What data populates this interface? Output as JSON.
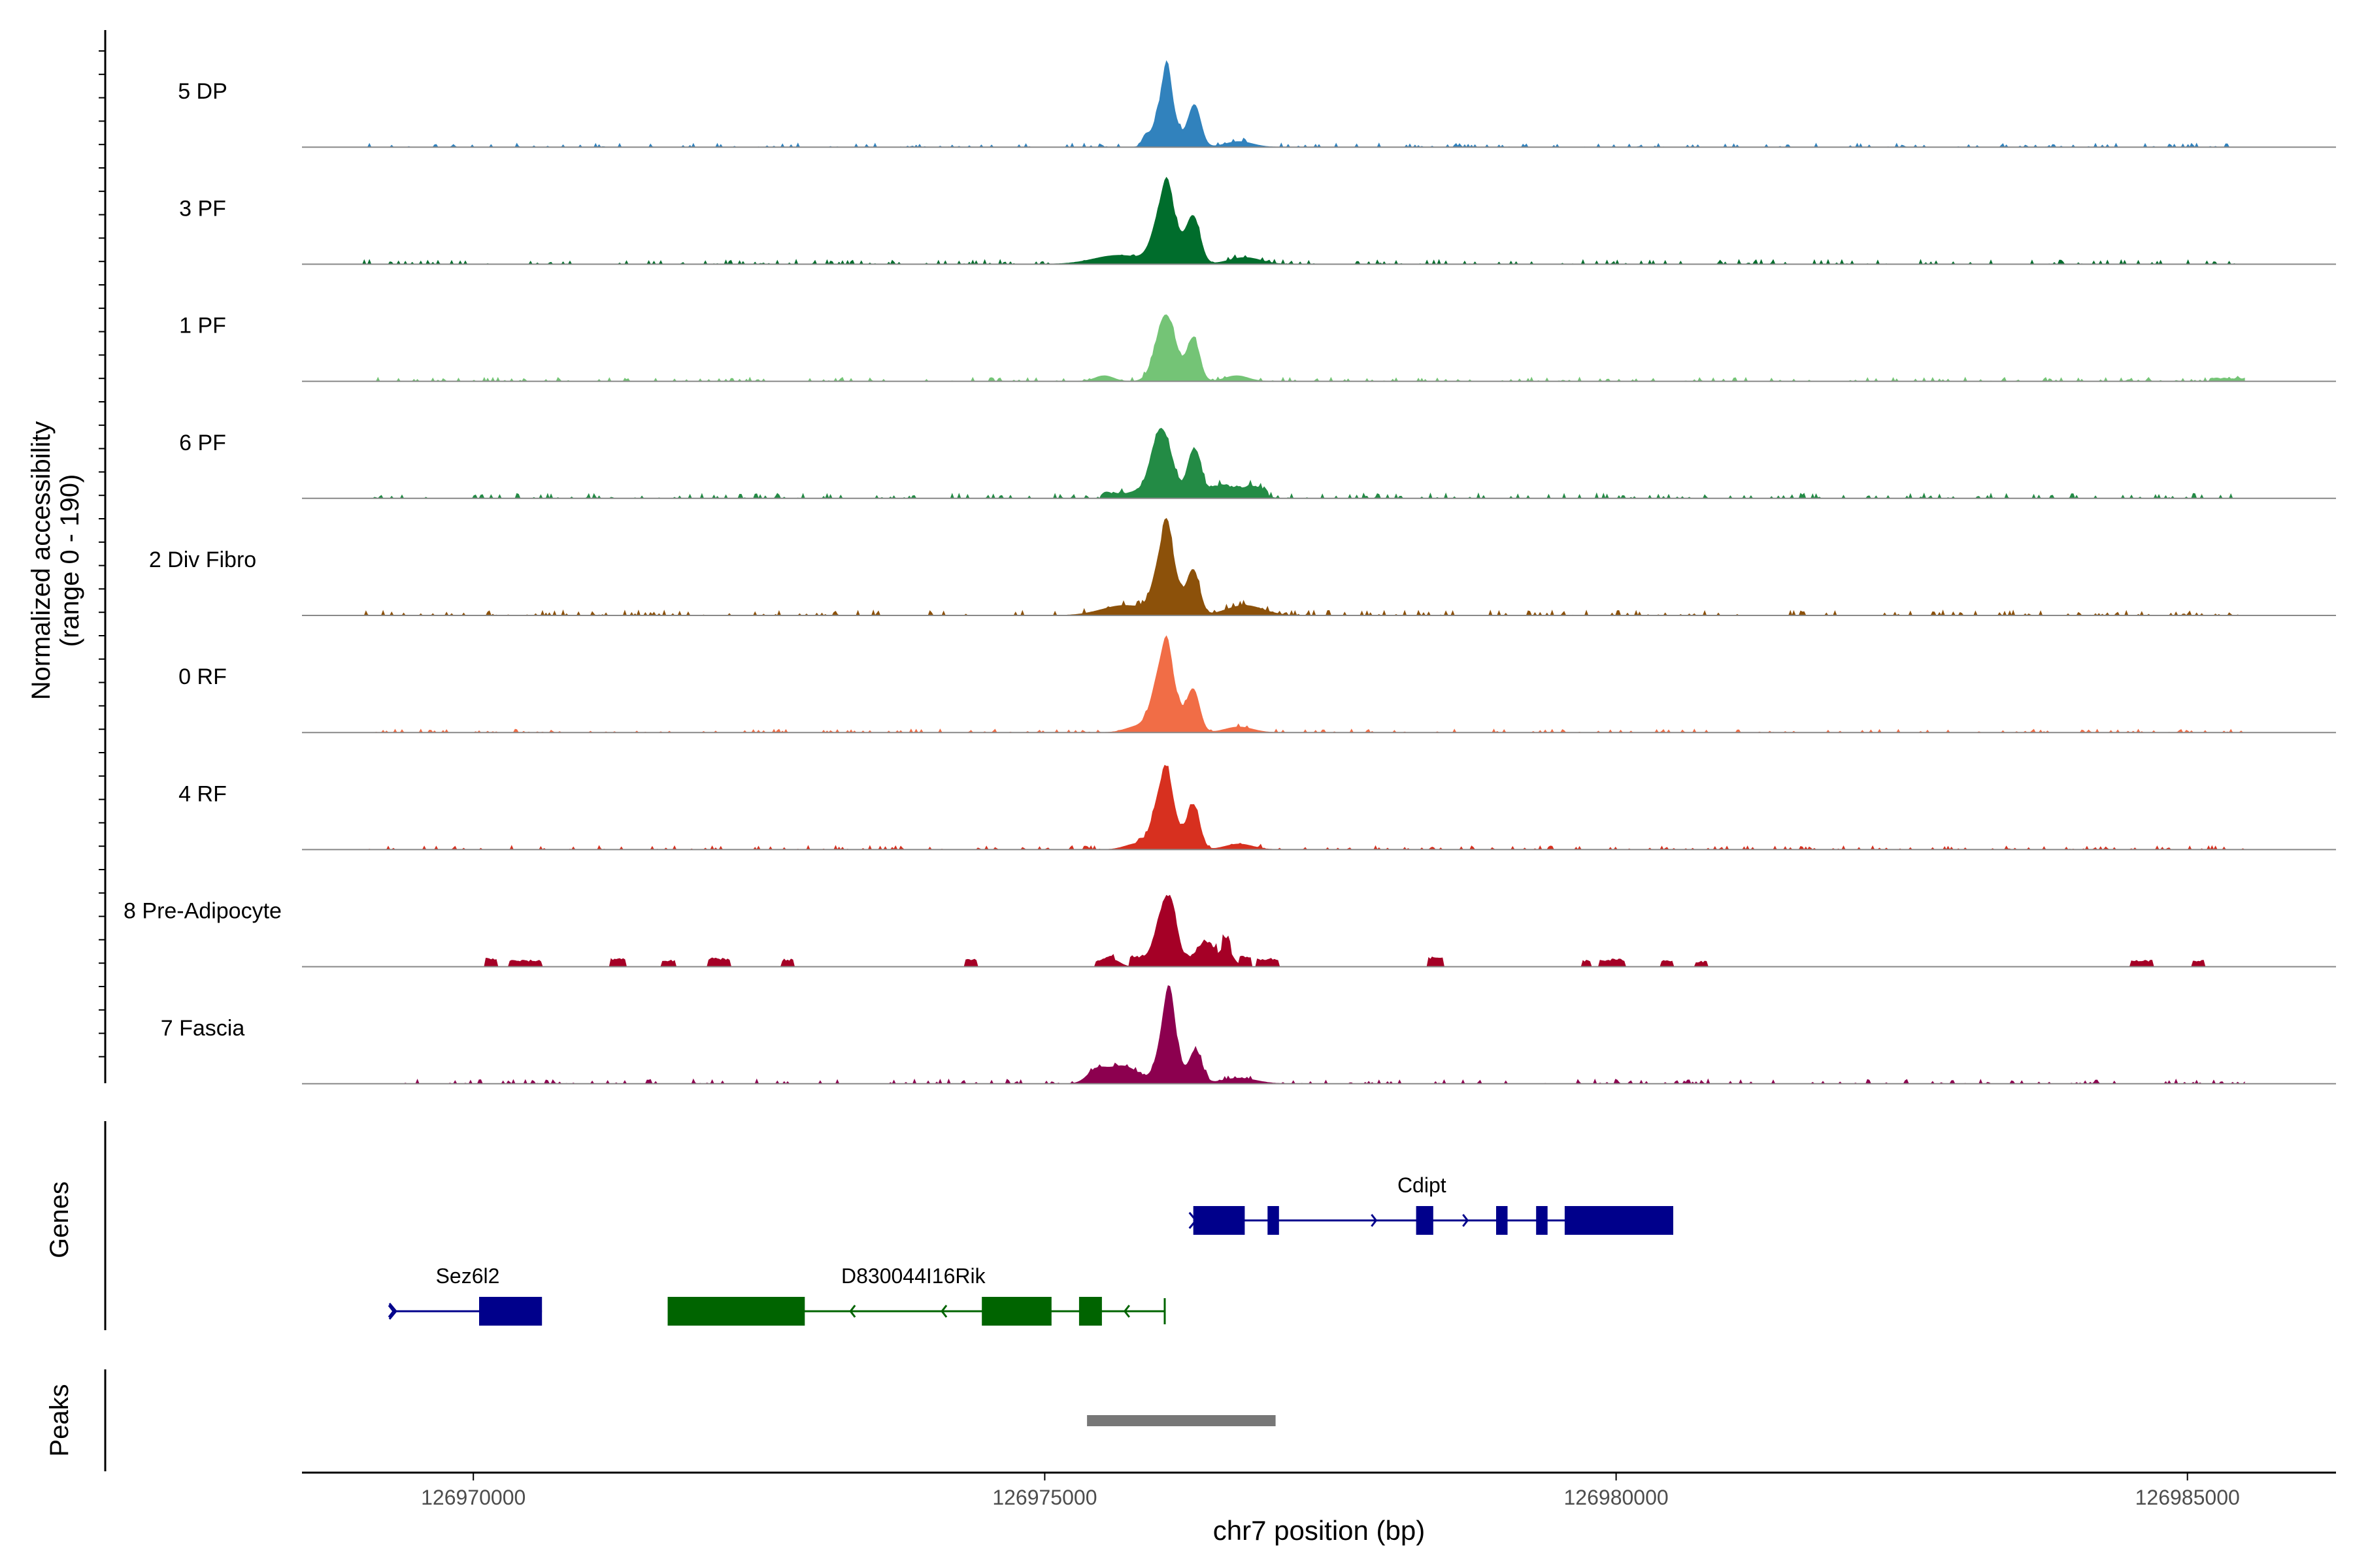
{
  "chart_data": {
    "type": "area",
    "title": "",
    "ylabel_line1": "Normalized accessibility",
    "ylabel_line2": "(range 0 - 190)",
    "y_range": [
      0,
      190
    ],
    "xlabel": "chr7 position (bp)",
    "xlim": [
      126968500,
      126986300
    ],
    "x_ticks": [
      126970000,
      126975000,
      126980000,
      126985000
    ],
    "x_tick_labels": [
      "126970000",
      "126975000",
      "126980000",
      "126985000"
    ],
    "signal_extent": [
      126969000,
      126985500
    ],
    "tracks": [
      {
        "name": "5 DP",
        "color": "#3182bd",
        "noise": 0.035,
        "blocks": [],
        "peaks": [
          [
            126975880,
            30,
            0.08
          ],
          [
            126976060,
            80,
            0.5
          ],
          [
            126976070,
            30,
            0.28
          ],
          [
            126976310,
            55,
            0.38
          ],
          [
            126976700,
            120,
            0.05
          ]
        ]
      },
      {
        "name": "3 PF",
        "color": "#006d2c",
        "noise": 0.04,
        "blocks": [],
        "peaks": [
          [
            126975650,
            220,
            0.08
          ],
          [
            126976060,
            90,
            0.62
          ],
          [
            126976070,
            32,
            0.15
          ],
          [
            126976300,
            60,
            0.42
          ],
          [
            126976750,
            140,
            0.06
          ]
        ]
      },
      {
        "name": "1 PF",
        "color": "#74c476",
        "noise": 0.035,
        "blocks": [
          [
            126985200,
            126985500,
            0.03
          ]
        ],
        "peaks": [
          [
            126975520,
            80,
            0.05
          ],
          [
            126976060,
            85,
            0.6
          ],
          [
            126976300,
            55,
            0.38
          ],
          [
            126976680,
            100,
            0.05
          ]
        ]
      },
      {
        "name": "6 PF",
        "color": "#238b45",
        "noise": 0.045,
        "blocks": [
          [
            126975500,
            126976950,
            0.06
          ]
        ],
        "peaks": [
          [
            126976020,
            85,
            0.58
          ],
          [
            126976310,
            55,
            0.4
          ],
          [
            126976550,
            80,
            0.07
          ],
          [
            126976800,
            100,
            0.06
          ]
        ]
      },
      {
        "name": "2 Div Fibro",
        "color": "#8c510a",
        "noise": 0.045,
        "blocks": [],
        "peaks": [
          [
            126975700,
            200,
            0.09
          ],
          [
            126976060,
            85,
            0.68
          ],
          [
            126976070,
            30,
            0.18
          ],
          [
            126976300,
            55,
            0.4
          ],
          [
            126976750,
            160,
            0.09
          ]
        ]
      },
      {
        "name": "0 RF",
        "color": "#f16d46",
        "noise": 0.03,
        "blocks": [],
        "peaks": [
          [
            126975800,
            100,
            0.05
          ],
          [
            126976050,
            90,
            0.7
          ],
          [
            126976070,
            30,
            0.18
          ],
          [
            126976300,
            55,
            0.38
          ],
          [
            126976700,
            120,
            0.05
          ]
        ]
      },
      {
        "name": "4 RF",
        "color": "#d7301f",
        "noise": 0.035,
        "blocks": [],
        "peaks": [
          [
            126975800,
            100,
            0.05
          ],
          [
            126976050,
            85,
            0.64
          ],
          [
            126976070,
            30,
            0.12
          ],
          [
            126976300,
            55,
            0.4
          ],
          [
            126976700,
            120,
            0.05
          ]
        ]
      },
      {
        "name": "8 Pre-Adipocyte",
        "color": "#a50026",
        "noise": 0.0,
        "blocks": [
          [
            126970100,
            126970200,
            0.08
          ],
          [
            126970320,
            126970600,
            0.06
          ],
          [
            126971200,
            126971330,
            0.08
          ],
          [
            126971650,
            126971760,
            0.06
          ],
          [
            126972050,
            126972250,
            0.08
          ],
          [
            126972700,
            126972800,
            0.07
          ],
          [
            126974300,
            126974400,
            0.07
          ],
          [
            126975450,
            126975600,
            0.05
          ],
          [
            126975750,
            126976500,
            0.1
          ],
          [
            126976550,
            126976620,
            0.12
          ],
          [
            126976700,
            126976800,
            0.09
          ],
          [
            126976850,
            126977050,
            0.08
          ],
          [
            126978350,
            126978480,
            0.09
          ],
          [
            126979700,
            126979780,
            0.06
          ],
          [
            126979850,
            126980080,
            0.07
          ],
          [
            126980400,
            126980500,
            0.06
          ],
          [
            126980700,
            126980800,
            0.05
          ],
          [
            126984500,
            126984700,
            0.06
          ],
          [
            126985050,
            126985150,
            0.06
          ]
        ],
        "peaks": [
          [
            126975600,
            60,
            0.06
          ],
          [
            126976050,
            70,
            0.48
          ],
          [
            126976120,
            40,
            0.2
          ],
          [
            126976400,
            60,
            0.14
          ],
          [
            126976580,
            60,
            0.17
          ]
        ]
      },
      {
        "name": "7 Fascia",
        "color": "#8c004f",
        "noise": 0.04,
        "blocks": [],
        "peaks": [
          [
            126975450,
            80,
            0.1
          ],
          [
            126975680,
            140,
            0.16
          ],
          [
            126976080,
            75,
            0.64
          ],
          [
            126976090,
            35,
            0.25
          ],
          [
            126976320,
            55,
            0.3
          ],
          [
            126976700,
            150,
            0.05
          ]
        ]
      }
    ],
    "genes": [
      {
        "name": "Cdipt",
        "strand": "+",
        "row": 0,
        "color": "#00008b",
        "start": 126976300,
        "end": 126980500,
        "exons": [
          [
            126976300,
            126976750
          ],
          [
            126976950,
            126977050
          ],
          [
            126978250,
            126978400
          ],
          [
            126978950,
            126979050
          ],
          [
            126979300,
            126979400
          ],
          [
            126979550,
            126980500
          ]
        ]
      },
      {
        "name": "Sez6l2",
        "strand": "+",
        "row": 1,
        "color": "#00008b",
        "start": 126969300,
        "end": 126970600,
        "exons": [
          [
            126970050,
            126970600
          ]
        ]
      },
      {
        "name": "D830044I16Rik",
        "strand": "-",
        "row": 1,
        "color": "#006400",
        "start": 126971700,
        "end": 126976050,
        "exons": [
          [
            126971700,
            126972900
          ],
          [
            126974450,
            126975060
          ],
          [
            126975300,
            126975500
          ]
        ]
      }
    ],
    "peak_regions": [
      [
        126975370,
        126977020
      ]
    ],
    "side_labels": {
      "genes": "Genes",
      "peaks": "Peaks"
    }
  }
}
